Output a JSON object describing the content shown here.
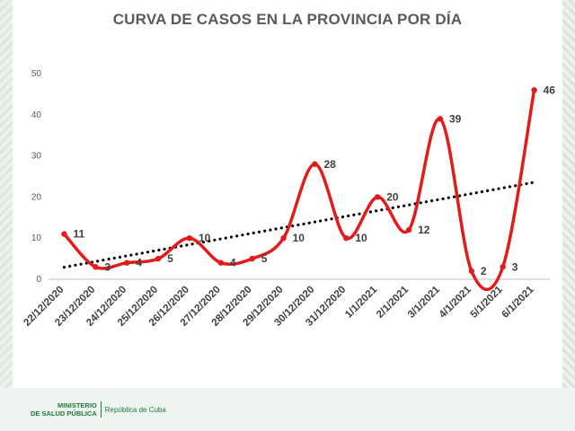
{
  "footer": {
    "ministry_line1": "MINISTERIO",
    "ministry_line2": "DE SALUD PÚBLICA",
    "republic": "República de Cuba"
  },
  "chart_data": {
    "type": "line",
    "title": "CURVA DE CASOS EN LA PROVINCIA POR DÍA",
    "xlabel": "",
    "ylabel": "",
    "categories": [
      "22/12/2020",
      "23/12/2020",
      "24/12/2020",
      "25/12/2020",
      "26/12/2020",
      "27/12/2020",
      "28/12/2020",
      "29/12/2020",
      "30/12/2020",
      "31/12/2020",
      "1/1/2021",
      "2/1/2021",
      "3/1/2021",
      "4/1/2021",
      "5/1/2021",
      "6/1/2021"
    ],
    "series": [
      {
        "values": [
          11,
          3,
          4,
          5,
          10,
          4,
          5,
          10,
          28,
          10,
          20,
          12,
          39,
          2,
          3,
          46
        ],
        "color": "#e31b1b"
      }
    ],
    "data_labels": [
      "11",
      "3",
      "4",
      "5",
      "10",
      "4",
      "5",
      "10",
      "28",
      "10",
      "20",
      "12",
      "39",
      "2",
      "3",
      "46"
    ],
    "trendline": {
      "type": "linear",
      "style": "dotted",
      "color": "#000000"
    },
    "ylim": [
      0,
      50
    ],
    "yticks": [
      "0",
      "10",
      "20",
      "30",
      "40",
      "50"
    ],
    "grid": false,
    "legend": "none",
    "smoothed": true
  }
}
